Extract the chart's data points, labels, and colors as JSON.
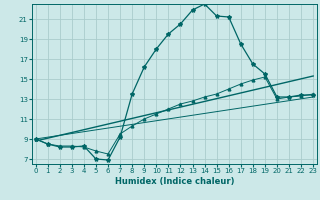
{
  "xlabel": "Humidex (Indice chaleur)",
  "bg_color": "#cce8e8",
  "line_color": "#006666",
  "grid_color": "#aacccc",
  "x_ticks": [
    0,
    1,
    2,
    3,
    4,
    5,
    6,
    7,
    8,
    9,
    10,
    11,
    12,
    13,
    14,
    15,
    16,
    17,
    18,
    19,
    20,
    21,
    22,
    23
  ],
  "y_ticks": [
    7,
    9,
    11,
    13,
    15,
    17,
    19,
    21
  ],
  "xlim": [
    -0.3,
    23.3
  ],
  "ylim": [
    6.5,
    22.5
  ],
  "line1_x": [
    0,
    1,
    2,
    3,
    4,
    5,
    6,
    7,
    8,
    9,
    10,
    11,
    12,
    13,
    14,
    15,
    16,
    17,
    18,
    19,
    20,
    21,
    22,
    23
  ],
  "line1_y": [
    9.0,
    8.5,
    8.2,
    8.2,
    8.3,
    7.0,
    6.9,
    9.2,
    13.5,
    16.2,
    18.0,
    19.5,
    20.5,
    21.9,
    22.5,
    21.3,
    21.2,
    18.5,
    16.5,
    15.5,
    13.2,
    13.2,
    13.4,
    13.4
  ],
  "line2_x": [
    0,
    1,
    2,
    3,
    4,
    5,
    6,
    7,
    8,
    9,
    10,
    11,
    12,
    13,
    14,
    15,
    16,
    17,
    18,
    19,
    20,
    21,
    22,
    23
  ],
  "line2_y": [
    9.0,
    8.5,
    8.3,
    8.3,
    8.2,
    7.8,
    7.5,
    9.5,
    10.3,
    11.0,
    11.5,
    12.0,
    12.5,
    12.8,
    13.2,
    13.5,
    14.0,
    14.5,
    14.9,
    15.2,
    13.0,
    13.2,
    13.3,
    13.5
  ],
  "trend1_x": [
    0,
    23
  ],
  "trend1_y": [
    8.8,
    15.3
  ],
  "trend2_x": [
    0,
    23
  ],
  "trend2_y": [
    9.0,
    13.2
  ]
}
